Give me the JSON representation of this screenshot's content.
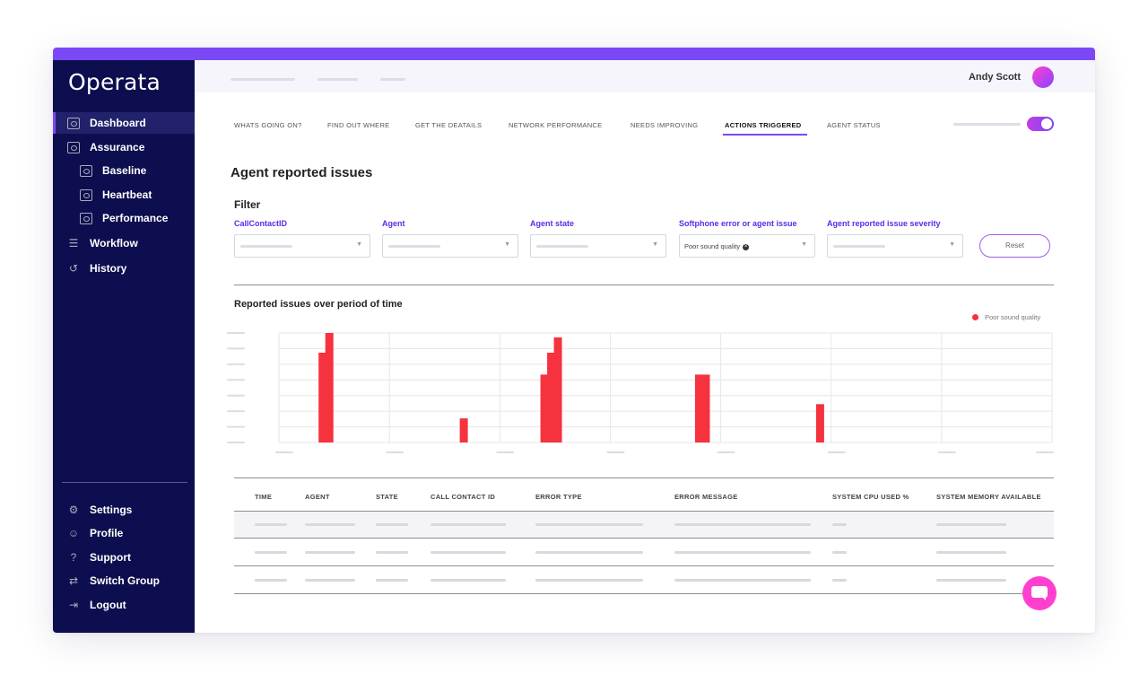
{
  "app": {
    "logo": "Operata",
    "accent": "#7b48f5",
    "sidebar_bg": "#0d0e4f",
    "pink": "#ff3fd0"
  },
  "sidebar": {
    "items": [
      {
        "label": "Dashboard",
        "icon": "dashboard-icon",
        "active": true
      },
      {
        "label": "Assurance",
        "icon": "assurance-icon"
      },
      {
        "label": "Baseline",
        "icon": "baseline-icon"
      },
      {
        "label": "Heartbeat",
        "icon": "heartbeat-icon"
      },
      {
        "label": "Performance",
        "icon": "performance-icon"
      },
      {
        "label": "Workflow",
        "icon": "workflow-icon"
      },
      {
        "label": "History",
        "icon": "history-icon"
      }
    ],
    "bottom": [
      {
        "label": "Settings",
        "icon": "settings-icon"
      },
      {
        "label": "Profile",
        "icon": "profile-icon"
      },
      {
        "label": "Support",
        "icon": "support-icon"
      },
      {
        "label": "Switch Group",
        "icon": "switch-group-icon"
      },
      {
        "label": "Logout",
        "icon": "logout-icon"
      }
    ]
  },
  "header": {
    "user_name": "Andy Scott"
  },
  "tabs": [
    {
      "label": "WHATS GOING ON?"
    },
    {
      "label": "FIND OUT WHERE"
    },
    {
      "label": "GET THE DEATAILS"
    },
    {
      "label": "NETWORK PERFORMANCE"
    },
    {
      "label": "NEEDS IMPROVING"
    },
    {
      "label": "ACTIONS TRIGGERED",
      "active": true
    },
    {
      "label": "AGENT STATUS"
    }
  ],
  "page": {
    "title": "Agent reported issues"
  },
  "filter": {
    "title": "Filter",
    "fields": [
      {
        "label": "CallContactID",
        "value": ""
      },
      {
        "label": "Agent",
        "value": ""
      },
      {
        "label": "Agent state",
        "value": ""
      },
      {
        "label": "Softphone error or agent issue",
        "value": "Poor sound quality"
      },
      {
        "label": "Agent reported issue severity",
        "value": ""
      }
    ],
    "reset_label": "Reset"
  },
  "chart_data": {
    "type": "bar",
    "title": "Reported issues over period of time",
    "series": [
      {
        "name": "Poor sound quality",
        "color": "#f5323e",
        "values": [
          0,
          0,
          0,
          0,
          0,
          0,
          82,
          100,
          0,
          0,
          0,
          0,
          0,
          0,
          0,
          0,
          0,
          0,
          0,
          0,
          0,
          0,
          0,
          0,
          0,
          0,
          0,
          22,
          0,
          0,
          0,
          0,
          0,
          0,
          0,
          0,
          0,
          0,
          0,
          62,
          82,
          96,
          0,
          0,
          0,
          0,
          0,
          0,
          0,
          0,
          0,
          0,
          0,
          0,
          0,
          0,
          0,
          0,
          0,
          0,
          0,
          0,
          62,
          62,
          0,
          0,
          0,
          0,
          0,
          0,
          0,
          0,
          0,
          0,
          0,
          0,
          0,
          0,
          0,
          0,
          35,
          0,
          0,
          0,
          0,
          0,
          0,
          0,
          0,
          0,
          0,
          0,
          0,
          0,
          0,
          0,
          0,
          0,
          0,
          0,
          0,
          0,
          0,
          0,
          0,
          0,
          0,
          0,
          0,
          0,
          0,
          0,
          0,
          0,
          0
        ]
      }
    ],
    "grid": true,
    "legend": "top-right",
    "ylim": [
      0,
      100
    ]
  },
  "table": {
    "columns": [
      "TIME",
      "AGENT",
      "STATE",
      "CALL CONTACT ID",
      "ERROR TYPE",
      "ERROR MESSAGE",
      "SYSTEM CPU USED %",
      "SYSTEM MEMORY AVAILABLE"
    ]
  }
}
